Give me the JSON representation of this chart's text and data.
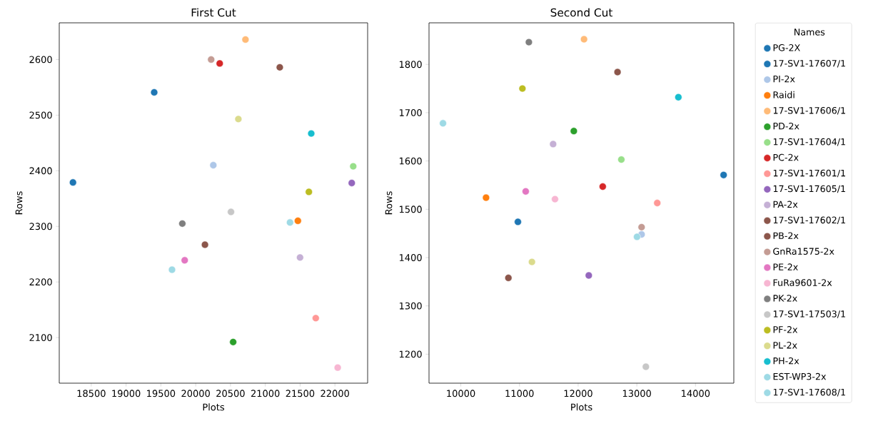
{
  "chart_data": [
    {
      "type": "scatter",
      "title": "First Cut",
      "xlabel": "Plots",
      "ylabel": "Rows",
      "xlim": [
        18040,
        22470
      ],
      "ylim": [
        2018,
        2666
      ],
      "xticks": [
        18500,
        19000,
        19500,
        20000,
        20500,
        21000,
        21500,
        22000
      ],
      "yticks": [
        2100,
        2200,
        2300,
        2400,
        2500,
        2600
      ],
      "legend": false,
      "series": [
        {
          "color": "#1f77b4",
          "x": [
            19404
          ],
          "values": [
            2541
          ]
        },
        {
          "color": "#1f77b4",
          "x": [
            18237
          ],
          "values": [
            2379
          ]
        },
        {
          "color": "#aec7e8",
          "x": [
            20253
          ],
          "values": [
            2410
          ]
        },
        {
          "color": "#ff7f0e",
          "x": [
            21468
          ],
          "values": [
            2310
          ]
        },
        {
          "color": "#ffbb78",
          "x": [
            20715
          ],
          "values": [
            2636
          ]
        },
        {
          "color": "#2ca02c",
          "x": [
            20538
          ],
          "values": [
            2092
          ]
        },
        {
          "color": "#98df8a",
          "x": [
            22263
          ],
          "values": [
            2408
          ]
        },
        {
          "color": "#d62728",
          "x": [
            20345
          ],
          "values": [
            2593
          ]
        },
        {
          "color": "#ff9896",
          "x": [
            21725
          ],
          "values": [
            2135
          ]
        },
        {
          "color": "#9467bd",
          "x": [
            22242
          ],
          "values": [
            2378
          ]
        },
        {
          "color": "#c5b0d5",
          "x": [
            21499
          ],
          "values": [
            2244
          ]
        },
        {
          "color": "#8c564b",
          "x": [
            21208
          ],
          "values": [
            2586
          ]
        },
        {
          "color": "#8c564b",
          "x": [
            20133
          ],
          "values": [
            2267
          ]
        },
        {
          "color": "#c49c94",
          "x": [
            20222
          ],
          "values": [
            2600
          ]
        },
        {
          "color": "#e377c2",
          "x": [
            19842
          ],
          "values": [
            2239
          ]
        },
        {
          "color": "#f7b6d2",
          "x": [
            22040
          ],
          "values": [
            2046
          ]
        },
        {
          "color": "#7f7f7f",
          "x": [
            19808
          ],
          "values": [
            2305
          ]
        },
        {
          "color": "#c7c7c7",
          "x": [
            20507
          ],
          "values": [
            2326
          ]
        },
        {
          "color": "#bcbd22",
          "x": [
            21626
          ],
          "values": [
            2362
          ]
        },
        {
          "color": "#dbdb8d",
          "x": [
            20613
          ],
          "values": [
            2493
          ]
        },
        {
          "color": "#17becf",
          "x": [
            21660
          ],
          "values": [
            2467
          ]
        },
        {
          "color": "#9edae5",
          "x": [
            21355
          ],
          "values": [
            2307
          ]
        },
        {
          "color": "#9edae5",
          "x": [
            19660
          ],
          "values": [
            2222
          ]
        }
      ]
    },
    {
      "type": "scatter",
      "title": "Second Cut",
      "xlabel": "Plots",
      "ylabel": "Rows",
      "xlim": [
        9458,
        14653
      ],
      "ylim": [
        1140,
        1886
      ],
      "xticks": [
        10000,
        11000,
        12000,
        13000,
        14000
      ],
      "yticks": [
        1200,
        1300,
        1400,
        1500,
        1600,
        1700,
        1800
      ],
      "legend": "right",
      "legend_title": "Names",
      "series": [
        {
          "name": "PG-2X",
          "color": "#1f77b4",
          "x": [
            14479
          ],
          "values": [
            1571
          ]
        },
        {
          "name": "17-SV1-17607/1",
          "color": "#1f77b4",
          "x": [
            10973
          ],
          "values": [
            1474
          ]
        },
        {
          "name": "PI-2x",
          "color": "#aec7e8",
          "x": [
            13081
          ],
          "values": [
            1448
          ]
        },
        {
          "name": "Raidi",
          "color": "#ff7f0e",
          "x": [
            10430
          ],
          "values": [
            1524
          ]
        },
        {
          "name": "17-SV1-17606/1",
          "color": "#ffbb78",
          "x": [
            12100
          ],
          "values": [
            1852
          ]
        },
        {
          "name": "PD-2x",
          "color": "#2ca02c",
          "x": [
            11926
          ],
          "values": [
            1662
          ]
        },
        {
          "name": "17-SV1-17604/1",
          "color": "#98df8a",
          "x": [
            12736
          ],
          "values": [
            1603
          ]
        },
        {
          "name": "PC-2x",
          "color": "#d62728",
          "x": [
            12419
          ],
          "values": [
            1547
          ]
        },
        {
          "name": "17-SV1-17601/1",
          "color": "#ff9896",
          "x": [
            13348
          ],
          "values": [
            1513
          ]
        },
        {
          "name": "17-SV1-17605/1",
          "color": "#9467bd",
          "x": [
            12181
          ],
          "values": [
            1363
          ]
        },
        {
          "name": "PA-2x",
          "color": "#c5b0d5",
          "x": [
            11573
          ],
          "values": [
            1635
          ]
        },
        {
          "name": "17-SV1-17602/1",
          "color": "#8c564b",
          "x": [
            12671
          ],
          "values": [
            1784
          ]
        },
        {
          "name": "PB-2x",
          "color": "#8c564b",
          "x": [
            10811
          ],
          "values": [
            1358
          ]
        },
        {
          "name": "GnRa1575-2x",
          "color": "#c49c94",
          "x": [
            13081
          ],
          "values": [
            1463
          ]
        },
        {
          "name": "PE-2x",
          "color": "#e377c2",
          "x": [
            11106
          ],
          "values": [
            1537
          ]
        },
        {
          "name": "FuRa9601-2x",
          "color": "#f7b6d2",
          "x": [
            11605
          ],
          "values": [
            1521
          ]
        },
        {
          "name": "PK-2x",
          "color": "#7f7f7f",
          "x": [
            11160
          ],
          "values": [
            1846
          ]
        },
        {
          "name": "17-SV1-17503/1",
          "color": "#c7c7c7",
          "x": [
            13154
          ],
          "values": [
            1174
          ]
        },
        {
          "name": "PF-2x",
          "color": "#bcbd22",
          "x": [
            11050
          ],
          "values": [
            1750
          ]
        },
        {
          "name": "PL-2x",
          "color": "#dbdb8d",
          "x": [
            11212
          ],
          "values": [
            1391
          ]
        },
        {
          "name": "PH-2x",
          "color": "#17becf",
          "x": [
            13708
          ],
          "values": [
            1732
          ]
        },
        {
          "name": "EST-WP3-2x",
          "color": "#9edae5",
          "x": [
            9696
          ],
          "values": [
            1678
          ]
        },
        {
          "name": "17-SV1-17608/1",
          "color": "#9edae5",
          "x": [
            13003
          ],
          "values": [
            1443
          ]
        }
      ]
    }
  ]
}
